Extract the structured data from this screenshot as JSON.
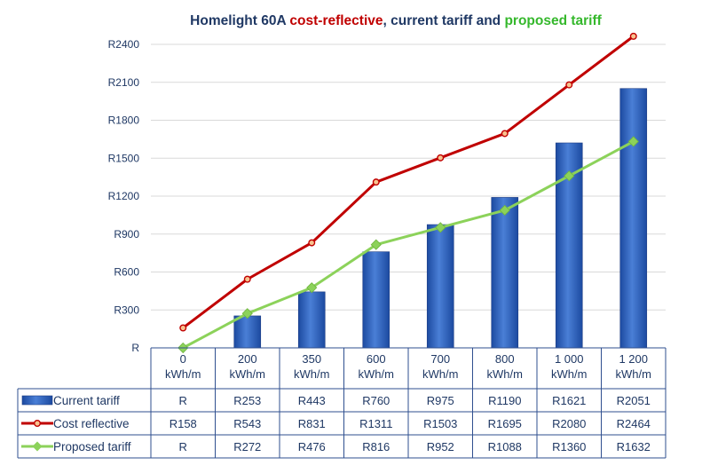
{
  "chart_data": {
    "type": "bar",
    "title_parts": [
      {
        "text": "Homelight 60A ",
        "color": "#1f3864"
      },
      {
        "text": "cost-reflective",
        "color": "#c00000"
      },
      {
        "text": ", current tariff and ",
        "color": "#1f3864"
      },
      {
        "text": "proposed tariff",
        "color": "#35b82c"
      }
    ],
    "categories": [
      [
        "0",
        "kWh/m"
      ],
      [
        "200",
        "kWh/m"
      ],
      [
        "350",
        "kWh/m"
      ],
      [
        "600",
        "kWh/m"
      ],
      [
        "700",
        "kWh/m"
      ],
      [
        "800",
        "kWh/m"
      ],
      [
        "1 000",
        "kWh/m"
      ],
      [
        "1 200",
        "kWh/m"
      ]
    ],
    "ylim": [
      0,
      2400
    ],
    "yticks": [
      0,
      300,
      600,
      900,
      1200,
      1500,
      1800,
      2100,
      2400
    ],
    "ytick_labels": [
      "R",
      "R300",
      "R600",
      "R900",
      "R1200",
      "R1500",
      "R1800",
      "R2100",
      "R2400"
    ],
    "grid": true,
    "series": [
      {
        "name": "Current tariff",
        "kind": "bar",
        "color": "#2f5fb4",
        "values": [
          0,
          253,
          443,
          760,
          975,
          1190,
          1621,
          2051
        ],
        "labels": [
          "R",
          "R253",
          "R443",
          "R760",
          "R975",
          "R1190",
          "R1621",
          "R2051"
        ]
      },
      {
        "name": "Cost reflective",
        "kind": "line",
        "color": "#c00000",
        "marker": "circle",
        "values": [
          158,
          543,
          831,
          1311,
          1503,
          1695,
          2080,
          2464
        ],
        "labels": [
          "R158",
          "R543",
          "R831",
          "R1311",
          "R1503",
          "R1695",
          "R2080",
          "R2464"
        ]
      },
      {
        "name": "Proposed tariff",
        "kind": "line",
        "color": "#8cd25a",
        "marker": "diamond",
        "values": [
          0,
          272,
          476,
          816,
          952,
          1088,
          1360,
          1632
        ],
        "labels": [
          "R",
          "R272",
          "R476",
          "R816",
          "R952",
          "R1088",
          "R1360",
          "R1632"
        ]
      }
    ]
  }
}
